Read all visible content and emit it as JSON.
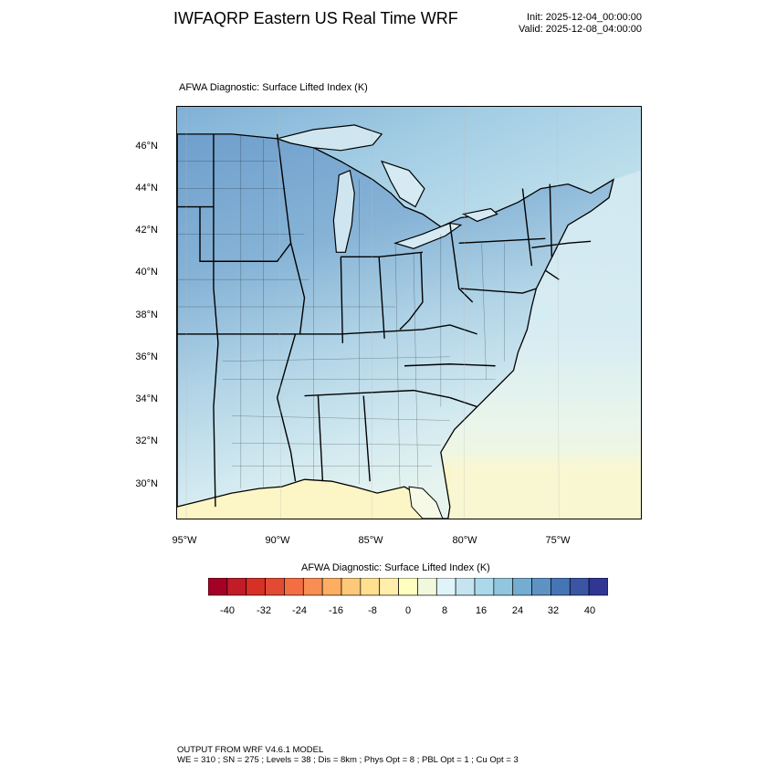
{
  "header": {
    "title": "IWFAQRP Eastern US Real Time WRF",
    "init": "Init: 2025-12-04_00:00:00",
    "valid": "Valid: 2025-12-08_04:00:00"
  },
  "map": {
    "subtitle": "AFWA Diagnostic: Surface Lifted Index   (K)",
    "lat_labels": [
      "46°N",
      "44°N",
      "42°N",
      "40°N",
      "38°N",
      "36°N",
      "34°N",
      "32°N",
      "30°N"
    ],
    "lon_labels": [
      "95°W",
      "90°W",
      "85°W",
      "80°W",
      "75°W"
    ],
    "colors": {
      "land_north": "#6f9fcc",
      "land_mid": "#a6cde2",
      "land_south": "#dceef2",
      "ocean": "#d7ecf3",
      "gulf": "#fdf9cc",
      "lakes": "#cfe6f0",
      "boundary": "#000000"
    }
  },
  "colorbar": {
    "title": "AFWA Diagnostic: Surface Lifted Index  (K)",
    "colors": [
      "#a50026",
      "#c21c28",
      "#d73027",
      "#e34a33",
      "#f46d43",
      "#f88e53",
      "#fdae61",
      "#fec87a",
      "#fee090",
      "#ffefab",
      "#ffffbf",
      "#f0f9db",
      "#e0f3f8",
      "#c5e4ef",
      "#abd9e9",
      "#92c5de",
      "#74add1",
      "#5e92c2",
      "#4575b4",
      "#3a55a4",
      "#313695"
    ],
    "labels": [
      "-40",
      "-32",
      "-24",
      "-16",
      "-8",
      "0",
      "8",
      "16",
      "24",
      "32",
      "40"
    ]
  },
  "footer": {
    "line1": "OUTPUT FROM WRF V4.6.1 MODEL",
    "line2": "WE = 310 ; SN = 275 ; Levels = 38 ; Dis = 8km ; Phys Opt = 8 ; PBL Opt = 1 ; Cu Opt = 3"
  }
}
